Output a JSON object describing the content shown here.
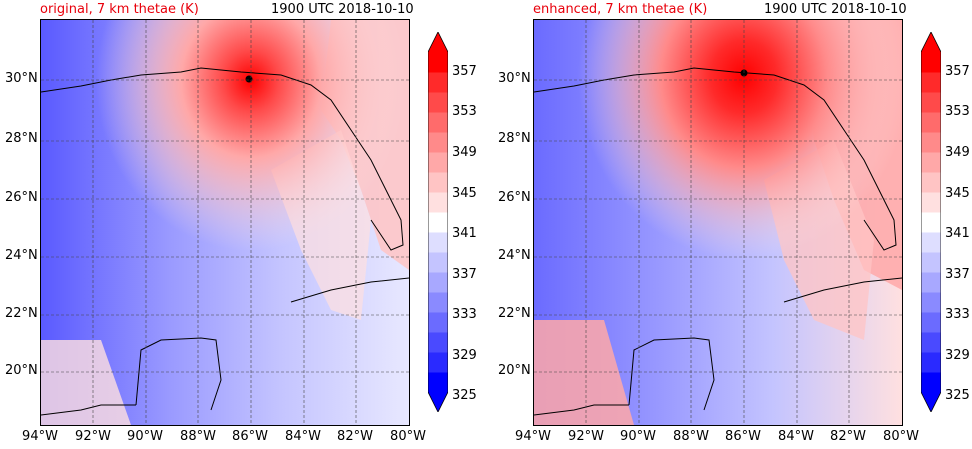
{
  "panels": [
    {
      "title_left": "original, 7 km thetae (K)",
      "title_right": "1900 UTC 2018-10-10"
    },
    {
      "title_left": "enhanced, 7 km thetae (K)",
      "title_right": "1900 UTC 2018-10-10"
    }
  ],
  "lat_labels": [
    "30°N",
    "28°N",
    "26°N",
    "24°N",
    "22°N",
    "20°N"
  ],
  "lon_labels": [
    "94°W",
    "92°W",
    "90°W",
    "88°W",
    "86°W",
    "84°W",
    "82°W",
    "80°W"
  ],
  "colorbar": {
    "ticks": [
      "357",
      "353",
      "349",
      "345",
      "341",
      "337",
      "333",
      "329",
      "325"
    ],
    "colors": [
      "#0000ff",
      "#2a2aff",
      "#4a4aff",
      "#6b6bff",
      "#8a8aff",
      "#a8a8ff",
      "#c4c4ff",
      "#dedeff",
      "#ffffff",
      "#ffe0e0",
      "#ffc4c4",
      "#ffa8a8",
      "#ff8a8a",
      "#ff6b6b",
      "#ff4a4a",
      "#ff2a2a",
      "#ff0000"
    ],
    "under_color": "#0000ff",
    "over_color": "#ff0000"
  },
  "colors": {
    "title_accent": "#e8000b"
  }
}
